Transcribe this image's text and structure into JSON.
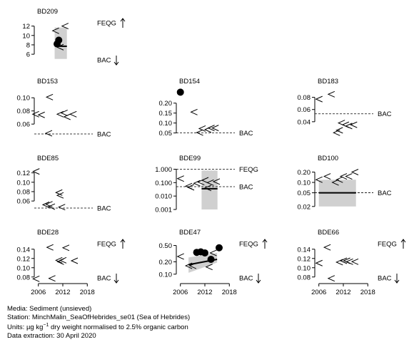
{
  "x_axis": {
    "range": [
      2005,
      2019
    ],
    "ticks": [
      2006,
      2012,
      2018
    ]
  },
  "colors": {
    "ink": "#000000",
    "band": "#d0d0d0",
    "grid_line": "#000000"
  },
  "chart_data": [
    {
      "type": "scatter",
      "title": "BD209",
      "yscale": "linear",
      "ylim": [
        4.5,
        13
      ],
      "yticks": [
        6,
        8,
        10,
        12
      ],
      "series": [
        {
          "kind": "lt",
          "x": [
            2010.2,
            2011.3,
            2012.5
          ],
          "y": [
            11.0,
            7.5,
            12.0
          ]
        },
        {
          "kind": "dot",
          "x": [
            2010.6,
            2011.0
          ],
          "y": [
            8.2,
            9.0
          ]
        }
      ],
      "band": {
        "x": [
          2010,
          2013
        ],
        "y": [
          5,
          11.7
        ]
      },
      "trend": {
        "x": [
          2010.3,
          2013
        ],
        "y": [
          7.7,
          7.7
        ]
      },
      "refs": [
        {
          "label": "FEQG",
          "arrow": "up"
        },
        {
          "label": "BAC",
          "arrow": "down"
        }
      ]
    },
    {
      "type": "scatter",
      "title": "BD153",
      "yscale": "linear",
      "ylim": [
        0.045,
        0.11
      ],
      "yticks": [
        0.06,
        0.08,
        0.1
      ],
      "series": [
        {
          "kind": "lt",
          "x": [
            2005.3,
            2006.7,
            2008.7,
            2011.3,
            2012.3,
            2013.0,
            2014.5,
            2008.5
          ],
          "y": [
            0.075,
            0.074,
            0.101,
            0.075,
            0.077,
            0.071,
            0.075,
            0.046
          ]
        },
        {
          "kind": "dot",
          "x": [],
          "y": []
        }
      ],
      "refs": [
        {
          "label": "BAC",
          "arrow": "",
          "value": 0.045,
          "style": "dash"
        }
      ]
    },
    {
      "type": "scatter",
      "title": "BD154",
      "yscale": "linear",
      "ylim": [
        0.045,
        0.26
      ],
      "yticks": [
        0.05,
        0.1,
        0.15,
        0.2
      ],
      "series": [
        {
          "kind": "lt",
          "x": [
            2009.3,
            2011.3,
            2012.7,
            2013.5,
            2014.5,
            2010.7
          ],
          "y": [
            0.155,
            0.072,
            0.067,
            0.075,
            0.075,
            0.052
          ]
        },
        {
          "kind": "dot",
          "x": [
            2006.0
          ],
          "y": [
            0.255
          ]
        }
      ],
      "refs": [
        {
          "label": "BAC",
          "arrow": "",
          "value": 0.05,
          "style": "dash"
        }
      ]
    },
    {
      "type": "scatter",
      "title": "BD183",
      "yscale": "linear",
      "ylim": [
        0.02,
        0.09
      ],
      "yticks": [
        0.04,
        0.06,
        0.08
      ],
      "series": [
        {
          "kind": "lt",
          "x": [
            2006.0,
            2009.0,
            2010.3,
            2011.5,
            2012.5,
            2013.3,
            2014.5,
            2011.0
          ],
          "y": [
            0.077,
            0.085,
            0.022,
            0.038,
            0.035,
            0.033,
            0.035,
            0.026
          ]
        },
        {
          "kind": "dot",
          "x": [],
          "y": []
        }
      ],
      "refs": [
        {
          "label": "BAC",
          "arrow": "",
          "value": 0.053,
          "style": "dash"
        }
      ]
    },
    {
      "type": "scatter",
      "title": "BDE85",
      "yscale": "linear",
      "ylim": [
        0.045,
        0.13
      ],
      "yticks": [
        0.06,
        0.08,
        0.1,
        0.12
      ],
      "series": [
        {
          "kind": "lt",
          "x": [
            2005.4,
            2007.8,
            2008.6,
            2009.2,
            2011.0,
            2011.3,
            2011.7
          ],
          "y": [
            0.123,
            0.052,
            0.053,
            0.048,
            0.078,
            0.072,
            0.047
          ]
        },
        {
          "kind": "dot",
          "x": [],
          "y": []
        }
      ],
      "refs": [
        {
          "label": "BAC",
          "arrow": "",
          "value": 0.045,
          "style": "dash"
        }
      ]
    },
    {
      "type": "scatter",
      "title": "BDE99",
      "yscale": "log",
      "ylim": [
        0.001,
        1.2
      ],
      "yticks": [
        0.001,
        0.01,
        0.1,
        1.0
      ],
      "series": [
        {
          "kind": "lt",
          "x": [
            2006.0,
            2008.0,
            2010.0,
            2011.0,
            2012.0,
            2013.3,
            2014.8,
            2008.5,
            2012.7
          ],
          "y": [
            0.2,
            0.055,
            0.09,
            0.11,
            0.15,
            0.1,
            0.12,
            0.045,
            0.04
          ]
        },
        {
          "kind": "dot",
          "x": [],
          "y": []
        }
      ],
      "band": {
        "x": [
          2011.2,
          2015.1
        ],
        "y": [
          0.001,
          0.8
        ]
      },
      "trend": {
        "x": [
          2011.2,
          2015.1
        ],
        "y": [
          0.035,
          0.035
        ]
      },
      "refs": [
        {
          "label": "FEQG",
          "arrow": "",
          "value": 1.0,
          "style": "dash"
        },
        {
          "label": "BAC",
          "arrow": "",
          "value": 0.05,
          "style": "dash"
        }
      ]
    },
    {
      "type": "scatter",
      "title": "BD100",
      "yscale": "log",
      "ylim": [
        0.018,
        0.26
      ],
      "yticks": [
        0.02,
        0.05,
        0.1,
        0.2
      ],
      "series": [
        {
          "kind": "lt",
          "x": [
            2006.0,
            2008.0,
            2010.0,
            2011.0,
            2012.0,
            2013.3,
            2014.8
          ],
          "y": [
            0.12,
            0.15,
            0.1,
            0.12,
            0.15,
            0.15,
            0.2
          ]
        },
        {
          "kind": "dot",
          "x": [],
          "y": []
        }
      ],
      "band": {
        "x": [
          2006.0,
          2015.1
        ],
        "y": [
          0.02,
          0.12
        ]
      },
      "trend": {
        "x": [
          2006.0,
          2015.1
        ],
        "y": [
          0.05,
          0.05
        ]
      },
      "refs": [
        {
          "label": "BAC",
          "arrow": "",
          "value": 0.05,
          "style": "dash"
        }
      ]
    },
    {
      "type": "scatter",
      "title": "BDE28",
      "yscale": "linear",
      "ylim": [
        0.075,
        0.155
      ],
      "yticks": [
        0.08,
        0.1,
        0.12,
        0.14
      ],
      "series": [
        {
          "kind": "lt",
          "x": [
            2005.4,
            2008.8,
            2011.0,
            2011.4,
            2012.0,
            2012.7,
            2014.8,
            2009.3
          ],
          "y": [
            0.076,
            0.144,
            0.116,
            0.113,
            0.116,
            0.143,
            0.115,
            0.077
          ]
        },
        {
          "kind": "dot",
          "x": [],
          "y": []
        }
      ],
      "refs": [
        {
          "label": "FEQG",
          "arrow": "up"
        },
        {
          "label": "BAC",
          "arrow": "down"
        }
      ]
    },
    {
      "type": "scatter",
      "title": "BDE47",
      "yscale": "log",
      "ylim": [
        0.075,
        0.6
      ],
      "yticks": [
        0.1,
        0.2,
        0.5
      ],
      "series": [
        {
          "kind": "lt",
          "x": [
            2006.0,
            2008.0,
            2013.0,
            2014.0,
            2009.0
          ],
          "y": [
            0.27,
            0.16,
            0.15,
            0.33,
            0.16
          ]
        },
        {
          "kind": "dot",
          "x": [
            2010.0,
            2011.0,
            2012.0,
            2013.5,
            2015.5
          ],
          "y": [
            0.34,
            0.35,
            0.33,
            0.23,
            0.44
          ]
        }
      ],
      "band": {
        "x": [
          2008.0,
          2015.0
        ],
        "y": [
          0.12,
          0.3
        ],
        "shape": "funnel"
      },
      "trend": {
        "x": [
          2008.0,
          2015.0
        ],
        "y": [
          0.17,
          0.23
        ]
      },
      "refs": [
        {
          "label": "FEQG",
          "arrow": "up"
        },
        {
          "label": "BAC",
          "arrow": "down"
        }
      ]
    },
    {
      "type": "scatter",
      "title": "BDE66",
      "yscale": "linear",
      "ylim": [
        0.075,
        0.155
      ],
      "yticks": [
        0.08,
        0.1,
        0.12,
        0.14
      ],
      "series": [
        {
          "kind": "lt",
          "x": [
            2006.0,
            2008.0,
            2011.0,
            2012.0,
            2012.8,
            2013.5,
            2014.8,
            2009.0
          ],
          "y": [
            0.11,
            0.144,
            0.112,
            0.115,
            0.115,
            0.113,
            0.113,
            0.077
          ]
        },
        {
          "kind": "dot",
          "x": [],
          "y": []
        }
      ],
      "refs": [
        {
          "label": "FEQG",
          "arrow": "up"
        },
        {
          "label": "BAC",
          "arrow": "down"
        }
      ]
    }
  ],
  "caption": {
    "media": "Media: Sediment (unsieved)",
    "station": "Station: MinchMalin_SeaOfHebrides_se01 (Sea of Hebrides)",
    "units_prefix": "Units: ",
    "units_mu": "µg kg",
    "units_exp": "−1",
    "units_rest": " dry weight normalised to 2.5% organic carbon",
    "extraction": "Data extraction: 30 April 2020"
  }
}
